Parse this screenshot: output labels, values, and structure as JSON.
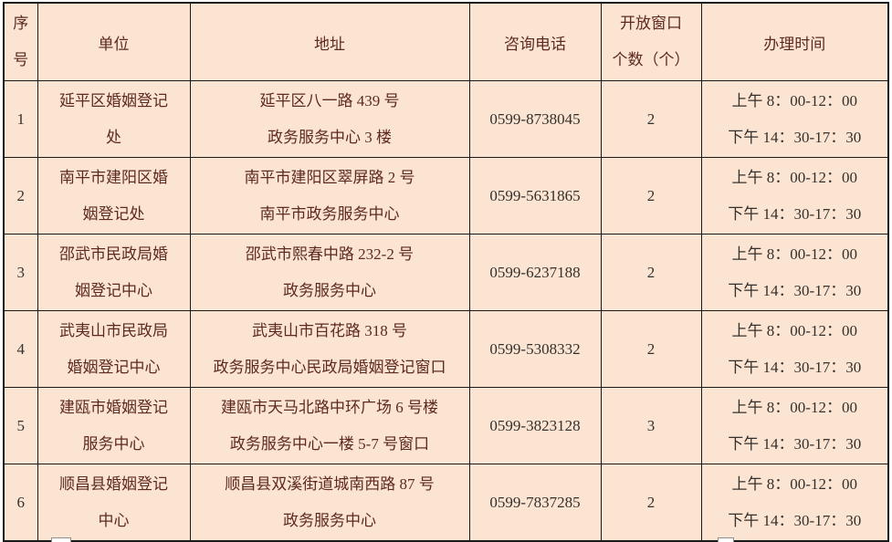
{
  "table": {
    "header": {
      "index_line1": "序",
      "index_line2": "号",
      "unit": "单位",
      "address": "地址",
      "phone": "咨询电话",
      "windows_line1": "开放窗口",
      "windows_line2": "个数（个）",
      "hours": "办理时间"
    },
    "rows": [
      {
        "index": "1",
        "unit_line1": "延平区婚姻登记",
        "unit_line2": "处",
        "address_line1": "延平区八一路 439 号",
        "address_line2": "政务服务中心 3 楼",
        "phone": "0599-8738045",
        "windows": "2",
        "hours_am": "上午 8：00-12：00",
        "hours_pm": "下午 14：30-17：30"
      },
      {
        "index": "2",
        "unit_line1": "南平市建阳区婚",
        "unit_line2": "姻登记处",
        "address_line1": "南平市建阳区翠屏路 2 号",
        "address_line2": "南平市政务服务中心",
        "phone": "0599-5631865",
        "windows": "2",
        "hours_am": "上午 8：00-12：00",
        "hours_pm": "下午 14：30-17：30"
      },
      {
        "index": "3",
        "unit_line1": "邵武市民政局婚",
        "unit_line2": "姻登记中心",
        "address_line1": "邵武市熙春中路 232-2 号",
        "address_line2": "政务服务中心",
        "phone": "0599-6237188",
        "windows": "2",
        "hours_am": "上午 8：00-12：00",
        "hours_pm": "下午 14：30-17：30"
      },
      {
        "index": "4",
        "unit_line1": "武夷山市民政局",
        "unit_line2": "婚姻登记中心",
        "address_line1": "武夷山市百花路 318 号",
        "address_line2": "政务服务中心民政局婚姻登记窗口",
        "phone": "0599-5308332",
        "windows": "2",
        "hours_am": "上午 8：00-12：00",
        "hours_pm": "下午 14：30-17：30"
      },
      {
        "index": "5",
        "unit_line1": "建瓯市婚姻登记",
        "unit_line2": "服务中心",
        "address_line1": "建瓯市天马北路中环广场 6 号楼",
        "address_line2": "政务服务中心一楼 5-7 号窗口",
        "phone": "0599-3823128",
        "windows": "3",
        "hours_am": "上午 8：00-12：00",
        "hours_pm": "下午 14：30-17：30"
      },
      {
        "index": "6",
        "unit_line1": "顺昌县婚姻登记",
        "unit_line2": "中心",
        "address_line1": "顺昌县双溪街道城南西路 87 号",
        "address_line2": "政务服务中心",
        "phone": "0599-7837285",
        "windows": "2",
        "hours_am": "上午 8：00-12：00",
        "hours_pm": "下午 14：30-17：30"
      }
    ],
    "colors": {
      "cell_background": "#fce4d3",
      "border": "#1a1a1a",
      "chinese_text": "#5d2a1d",
      "numeric_text": "#34302b"
    }
  }
}
